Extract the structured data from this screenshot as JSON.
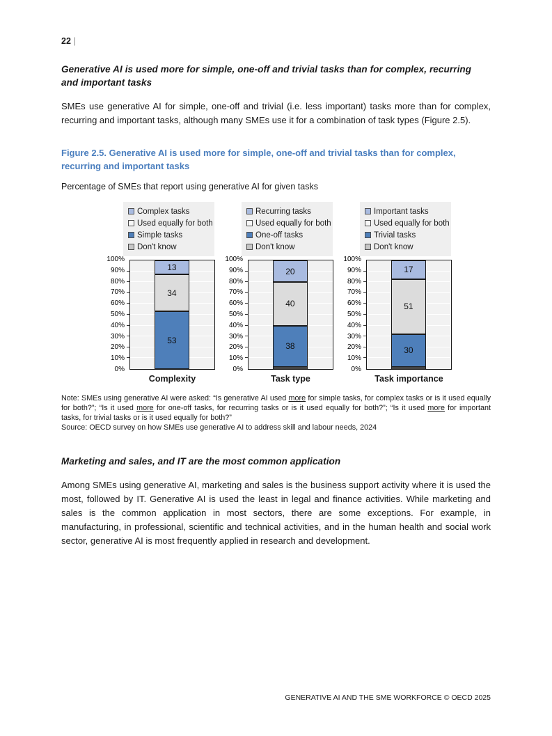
{
  "page": {
    "number": "22",
    "separator": "|",
    "footer": "GENERATIVE AI AND THE SME WORKFORCE © OECD 2025"
  },
  "section1": {
    "heading": "Generative AI is used more for simple, one-off and trivial tasks than for complex, recurring and important tasks",
    "body": "SMEs use generative AI for simple, one-off and trivial (i.e. less important) tasks more than for complex, recurring and important tasks, although many SMEs use it for a combination of task types (Figure 2.5)."
  },
  "figure": {
    "title": "Figure 2.5. Generative AI is used more for simple, one-off and trivial tasks than for complex, recurring and important tasks",
    "subtitle": "Percentage of SMEs that report using generative AI for given tasks",
    "note_parts": [
      {
        "text": "Note: SMEs using generative AI were asked: “Is generative AI used ",
        "underline": false
      },
      {
        "text": "more",
        "underline": true
      },
      {
        "text": " for simple tasks, for complex tasks or is it used equally for both?”; “Is it used ",
        "underline": false
      },
      {
        "text": "more",
        "underline": true
      },
      {
        "text": " for one-off tasks, for recurring tasks or is it used equally for both?”; “Is it used ",
        "underline": false
      },
      {
        "text": "more",
        "underline": true
      },
      {
        "text": " for important tasks, for trivial tasks or is it used equally for both?”",
        "underline": false
      }
    ],
    "source": "Source: OECD survey on how SMEs use generative AI to address skill and labour needs, 2024"
  },
  "colors": {
    "light_blue": "#a9bbe0",
    "medium_blue": "#4e7fba",
    "light_gray": "#dcdcdc",
    "dont_know_gray": "#bfbfbf",
    "figure_title_blue": "#4a7ebe",
    "legend_background": "#efefef",
    "plot_background": "#f2f2f2"
  },
  "chart_data": [
    {
      "type": "bar",
      "stacked": true,
      "xlabel": "Complexity",
      "ylim": [
        0,
        100
      ],
      "grid": true,
      "legend_position": "top",
      "y_ticks": [
        "0%",
        "10%",
        "20%",
        "30%",
        "40%",
        "50%",
        "60%",
        "70%",
        "80%",
        "90%",
        "100%"
      ],
      "legend": [
        {
          "label": "Complex tasks",
          "color": "#a9bbe0"
        },
        {
          "label": "Used equally for both",
          "color": "#f7f7f7"
        },
        {
          "label": "Simple tasks",
          "color": "#4e7fba"
        },
        {
          "label": "Don't know",
          "color": "#c6c6c6"
        }
      ],
      "segments_bottom_to_top": [
        {
          "name": "Don't know",
          "value": 0,
          "color": "#bfbfbf",
          "show_label": false
        },
        {
          "name": "Simple tasks",
          "value": 53,
          "color": "#4e7fba",
          "show_label": true
        },
        {
          "name": "Used equally for both",
          "value": 34,
          "color": "#dcdcdc",
          "show_label": true
        },
        {
          "name": "Complex tasks",
          "value": 13,
          "color": "#a9bbe0",
          "show_label": true
        }
      ]
    },
    {
      "type": "bar",
      "stacked": true,
      "xlabel": "Task type",
      "ylim": [
        0,
        100
      ],
      "grid": true,
      "legend_position": "top",
      "y_ticks": [
        "0%",
        "10%",
        "20%",
        "30%",
        "40%",
        "50%",
        "60%",
        "70%",
        "80%",
        "90%",
        "100%"
      ],
      "legend": [
        {
          "label": "Recurring tasks",
          "color": "#a9bbe0"
        },
        {
          "label": "Used equally for both",
          "color": "#f7f7f7"
        },
        {
          "label": "One-off tasks",
          "color": "#4e7fba"
        },
        {
          "label": "Don't know",
          "color": "#c6c6c6"
        }
      ],
      "segments_bottom_to_top": [
        {
          "name": "Don't know",
          "value": 2,
          "color": "#bfbfbf",
          "show_label": false
        },
        {
          "name": "One-off tasks",
          "value": 38,
          "color": "#4e7fba",
          "show_label": true
        },
        {
          "name": "Used equally for both",
          "value": 40,
          "color": "#dcdcdc",
          "show_label": true
        },
        {
          "name": "Recurring tasks",
          "value": 20,
          "color": "#a9bbe0",
          "show_label": true
        }
      ]
    },
    {
      "type": "bar",
      "stacked": true,
      "xlabel": "Task importance",
      "ylim": [
        0,
        100
      ],
      "grid": true,
      "legend_position": "top",
      "y_ticks": [
        "0%",
        "10%",
        "20%",
        "30%",
        "40%",
        "50%",
        "60%",
        "70%",
        "80%",
        "90%",
        "100%"
      ],
      "legend": [
        {
          "label": "Important tasks",
          "color": "#a9bbe0"
        },
        {
          "label": "Used equally for both",
          "color": "#f7f7f7"
        },
        {
          "label": "Trivial tasks",
          "color": "#4e7fba"
        },
        {
          "label": "Don't know",
          "color": "#c6c6c6"
        }
      ],
      "segments_bottom_to_top": [
        {
          "name": "Don't know",
          "value": 2,
          "color": "#bfbfbf",
          "show_label": false
        },
        {
          "name": "Trivial tasks",
          "value": 30,
          "color": "#4e7fba",
          "show_label": true
        },
        {
          "name": "Used equally for both",
          "value": 51,
          "color": "#dcdcdc",
          "show_label": true
        },
        {
          "name": "Important tasks",
          "value": 17,
          "color": "#a9bbe0",
          "show_label": true
        }
      ]
    }
  ],
  "section2": {
    "heading": "Marketing and sales, and IT are the most common application",
    "body": "Among SMEs using generative AI, marketing and sales is the business support activity where it is used the most, followed by IT. Generative AI is used the least in legal and finance activities. While marketing and sales is the common application in most sectors, there are some exceptions. For example, in manufacturing, in professional, scientific and technical activities, and in the human health and social work sector, generative AI is most frequently applied in research and development."
  }
}
